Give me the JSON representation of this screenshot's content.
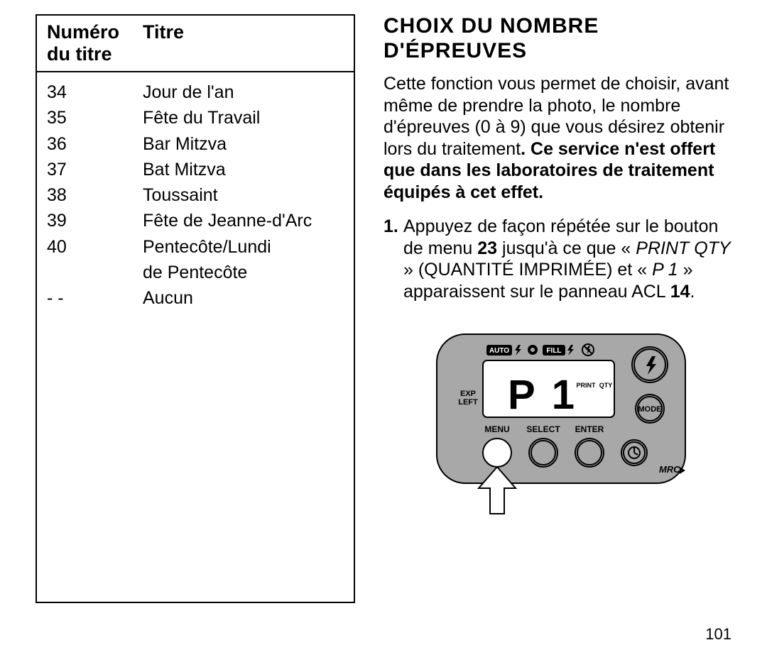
{
  "table": {
    "header_left_line1": "Numéro",
    "header_left_line2": "du titre",
    "header_right": "Titre",
    "rows": [
      {
        "num": "34",
        "title": "Jour de l'an"
      },
      {
        "num": "35",
        "title": "Fête du Travail"
      },
      {
        "num": "36",
        "title": "Bar Mitzva"
      },
      {
        "num": "37",
        "title": "Bat Mitzva"
      },
      {
        "num": "38",
        "title": "Toussaint"
      },
      {
        "num": "39",
        "title": "Fête de Jeanne-d'Arc"
      },
      {
        "num": "40",
        "title": "Pentecôte/Lundi"
      },
      {
        "num": "",
        "title": "de Pentecôte"
      },
      {
        "num": "- -",
        "title": "Aucun"
      }
    ]
  },
  "heading_line1": "CHOIX DU NOMBRE",
  "heading_line2": "D'ÉPREUVES",
  "paragraph": {
    "part1": "Cette fonction vous permet de choisir, avant même de prendre la photo, le nombre d'épreuves (0 à 9) que vous désirez obtenir lors du traitement",
    "part2_bold": ". Ce service n'est offert que dans les laboratoires de traitement équipés à cet effet."
  },
  "step1": {
    "num": "1.",
    "pre": "Appuyez de façon répétée sur le bouton de menu ",
    "ref23": "23",
    "mid1": " jusqu'à ce que « ",
    "printqty": "PRINT QTY",
    "mid2": " » (QUANTITÉ IMPRIMÉE) et « ",
    "p1": "P 1",
    "mid3": " » apparaissent sur le panneau ACL ",
    "ref14": "14",
    "end": "."
  },
  "page_number": "101",
  "device": {
    "bg_gray": "#a8a8a8",
    "screen_bg": "#ffffff",
    "label_auto": "AUTO",
    "label_fill": "FILL",
    "label_exp": "EXP",
    "label_left": "LEFT",
    "label_print": "PRINT",
    "label_qty": "QTY",
    "display_text": "P 1",
    "btn_mode": "MODE",
    "btn_menu": "MENU",
    "btn_select": "SELECT",
    "btn_enter": "ENTER",
    "mrc": "MRC"
  },
  "colors": {
    "black": "#000000",
    "white": "#ffffff",
    "gray": "#a8a8a8"
  }
}
